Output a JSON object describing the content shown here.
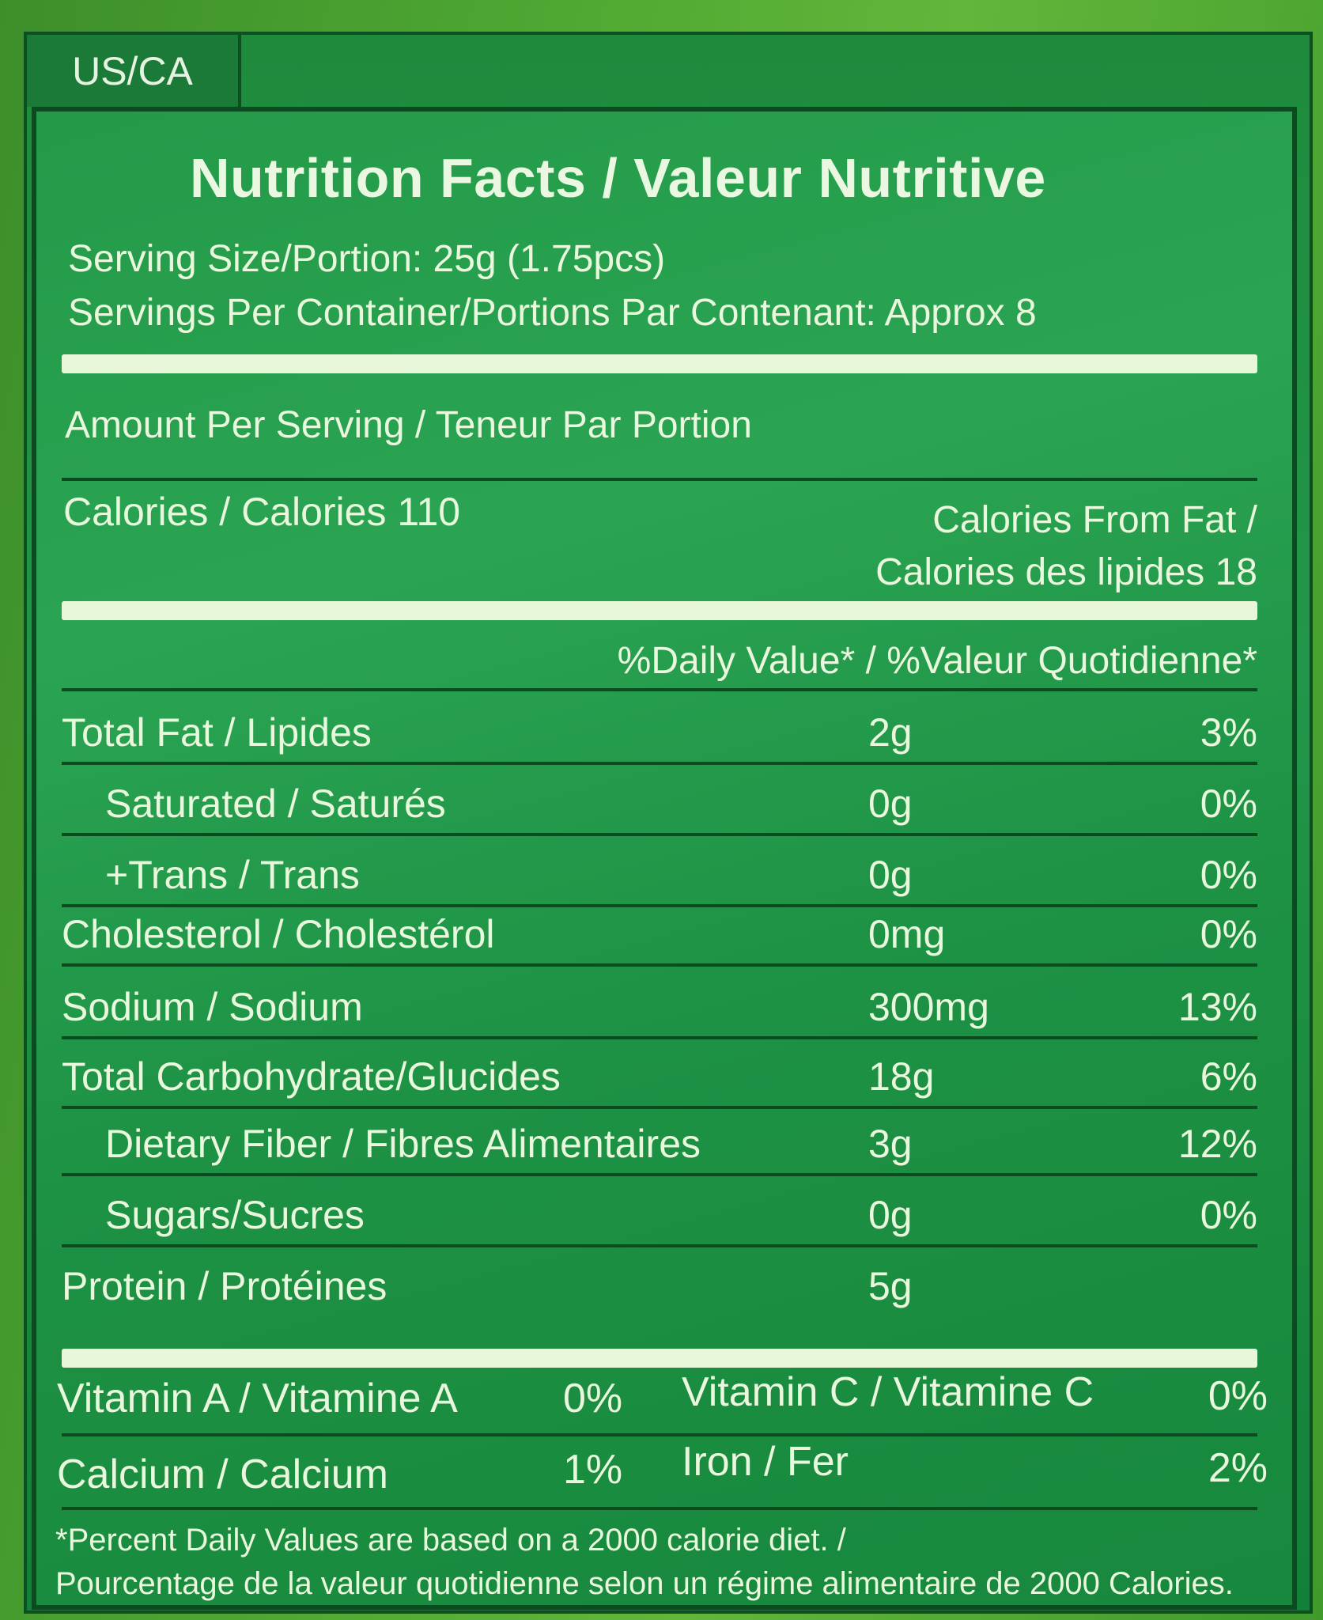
{
  "region_tab": "US/CA",
  "title": "Nutrition Facts / Valeur Nutritive",
  "serving_size": "Serving Size/Portion: 25g (1.75pcs)",
  "servings_per_container": "Servings Per Container/Portions Par Contenant: Approx 8",
  "amount_per_serving": "Amount Per Serving / Teneur Par Portion",
  "calories": "Calories / Calories 110",
  "calories_from_fat_line1": "Calories From Fat /",
  "calories_from_fat_line2": "Calories des lipides 18",
  "daily_value_header": "%Daily Value* / %Valeur Quotidienne*",
  "nutrients": [
    {
      "name": "Total Fat / Lipides",
      "amount": "2g",
      "pct": "3%"
    },
    {
      "name": "Saturated / Saturés",
      "amount": "0g",
      "pct": "0%"
    },
    {
      "name": "+Trans / Trans",
      "amount": "0g",
      "pct": "0%"
    },
    {
      "name": "Cholesterol / Cholestérol",
      "amount": "0mg",
      "pct": "0%"
    },
    {
      "name": "Sodium / Sodium",
      "amount": "300mg",
      "pct": "13%"
    },
    {
      "name": "Total Carbohydrate/Glucides",
      "amount": "18g",
      "pct": "6%"
    },
    {
      "name": "Dietary Fiber / Fibres Alimentaires",
      "amount": "3g",
      "pct": "12%"
    },
    {
      "name": "Sugars/Sucres",
      "amount": "0g",
      "pct": "0%"
    },
    {
      "name": "Protein / Protéines",
      "amount": "5g",
      "pct": ""
    }
  ],
  "vitamins": [
    {
      "name": "Vitamin A / Vitamine A",
      "pct": "0%"
    },
    {
      "name": "Vitamin C / Vitamine C",
      "pct": "0%"
    },
    {
      "name": "Calcium / Calcium",
      "pct": "1%"
    },
    {
      "name": "Iron / Fer",
      "pct": "2%"
    }
  ],
  "footnote_line1": "*Percent Daily Values are based on a 2000 calorie diet. /",
  "footnote_line2": "Pourcentage de la valeur quotidienne selon un régime alimentaire de 2000 Calories."
}
